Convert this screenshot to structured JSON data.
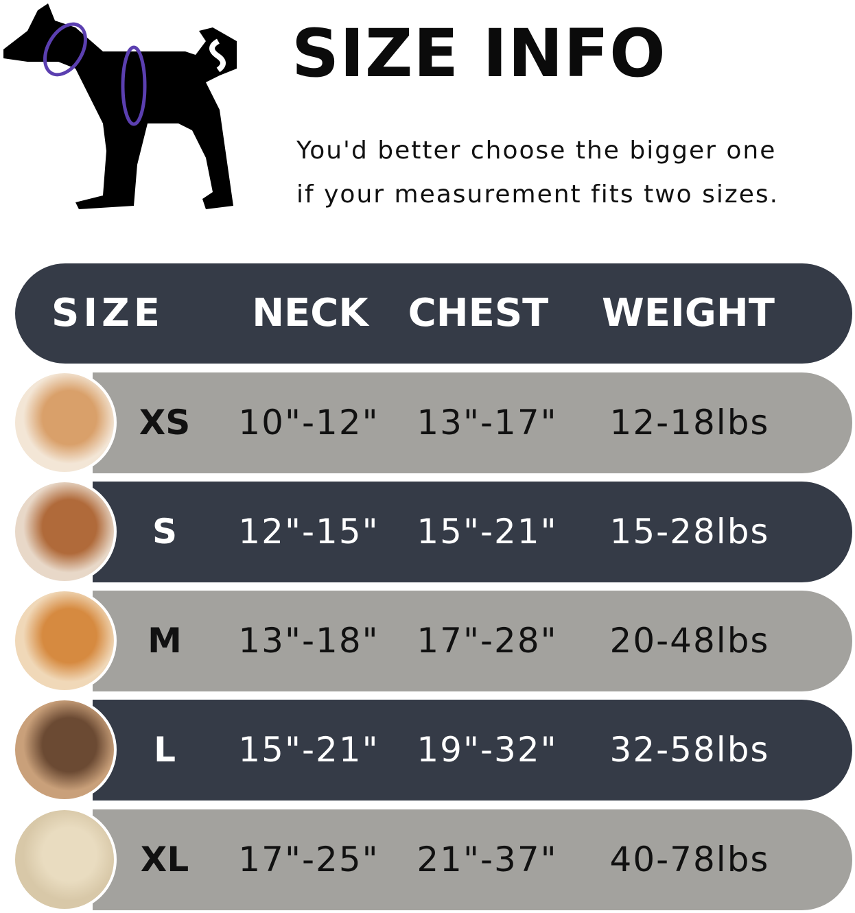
{
  "title": "SIZE INFO",
  "subtitle_lines": [
    "You'd better choose the bigger one",
    "if your measurement fits two sizes."
  ],
  "colors": {
    "dark_row": "#353b47",
    "gray_row": "#a3a29e",
    "measure_line": "#5b3fb0"
  },
  "table": {
    "headers": [
      "SIZE",
      "NECK",
      "CHEST",
      "WEIGHT"
    ],
    "rows": [
      {
        "size": "XS",
        "neck": "10\"-12\"",
        "chest": "13\"-17\"",
        "weight": "12-18lbs",
        "photo": "pomeranian"
      },
      {
        "size": "S",
        "neck": "12\"-15\"",
        "chest": "15\"-21\"",
        "weight": "15-28lbs",
        "photo": "poodle"
      },
      {
        "size": "M",
        "neck": "13\"-18\"",
        "chest": "17\"-28\"",
        "weight": "20-48lbs",
        "photo": "shiba-inu"
      },
      {
        "size": "L",
        "neck": "15\"-21\"",
        "chest": "19\"-32\"",
        "weight": "32-58lbs",
        "photo": "french-bulldog"
      },
      {
        "size": "XL",
        "neck": "17\"-25\"",
        "chest": "21\"-37\"",
        "weight": "40-78lbs",
        "photo": "labrador"
      }
    ]
  }
}
